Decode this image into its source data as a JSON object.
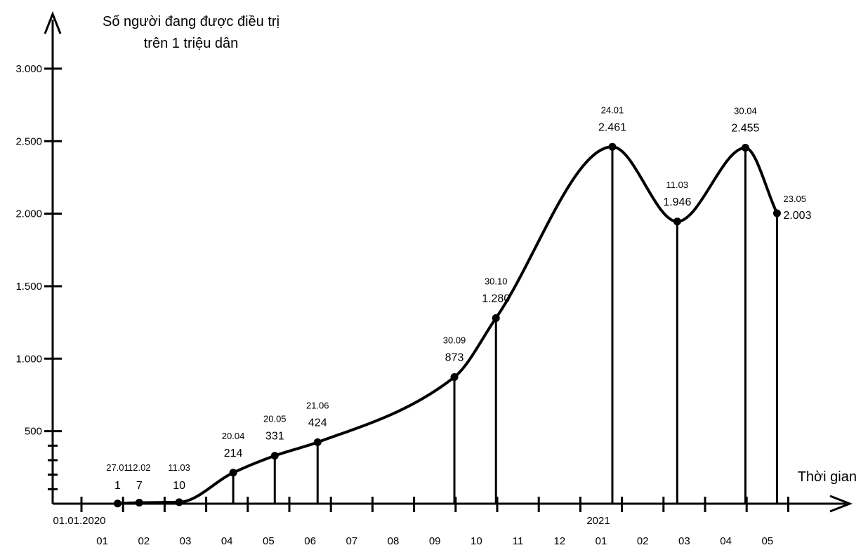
{
  "chart_data": {
    "type": "line",
    "title": "",
    "ylabel_lines": [
      "Số người đang được điều trị",
      "trên 1 triệu dân"
    ],
    "xlabel": "Thời gian",
    "ylim": [
      0,
      3000
    ],
    "y_ticks": [
      {
        "value": 500,
        "label": "500"
      },
      {
        "value": 1000,
        "label": "1.000"
      },
      {
        "value": 1500,
        "label": "1.500"
      },
      {
        "value": 2000,
        "label": "2.000"
      },
      {
        "value": 2500,
        "label": "2.500"
      },
      {
        "value": 3000,
        "label": "3.000"
      }
    ],
    "y_minor_ticks": [
      100,
      200,
      300,
      400
    ],
    "x_start_label": "01.01.2020",
    "x_year_label": "2021",
    "x_month_labels": [
      "01",
      "02",
      "03",
      "04",
      "05",
      "06",
      "07",
      "08",
      "09",
      "10",
      "11",
      "12",
      "01",
      "02",
      "03",
      "04",
      "05"
    ],
    "points": [
      {
        "date": "27.01",
        "month_index": 0.87,
        "value": 1,
        "label": "1"
      },
      {
        "date": "12.02",
        "month_index": 1.39,
        "value": 7,
        "label": "7"
      },
      {
        "date": "11.03",
        "month_index": 2.35,
        "value": 10,
        "label": "10"
      },
      {
        "date": "20.04",
        "month_index": 3.65,
        "value": 214,
        "label": "214"
      },
      {
        "date": "20.05",
        "month_index": 4.65,
        "value": 331,
        "label": "331"
      },
      {
        "date": "21.06",
        "month_index": 5.68,
        "value": 424,
        "label": "424"
      },
      {
        "date": "30.09",
        "month_index": 8.97,
        "value": 873,
        "label": "873"
      },
      {
        "date": "30.10",
        "month_index": 9.97,
        "value": 1280,
        "label": "1.280"
      },
      {
        "date": "24.01",
        "month_index": 12.77,
        "value": 2461,
        "label": "2.461"
      },
      {
        "date": "11.03",
        "month_index": 14.33,
        "value": 1946,
        "label": "1.946"
      },
      {
        "date": "30.04",
        "month_index": 15.97,
        "value": 2455,
        "label": "2.455"
      },
      {
        "date": "23.05",
        "month_index": 16.73,
        "value": 2003,
        "label": "2.003"
      }
    ],
    "grid": false,
    "legend": "none"
  }
}
